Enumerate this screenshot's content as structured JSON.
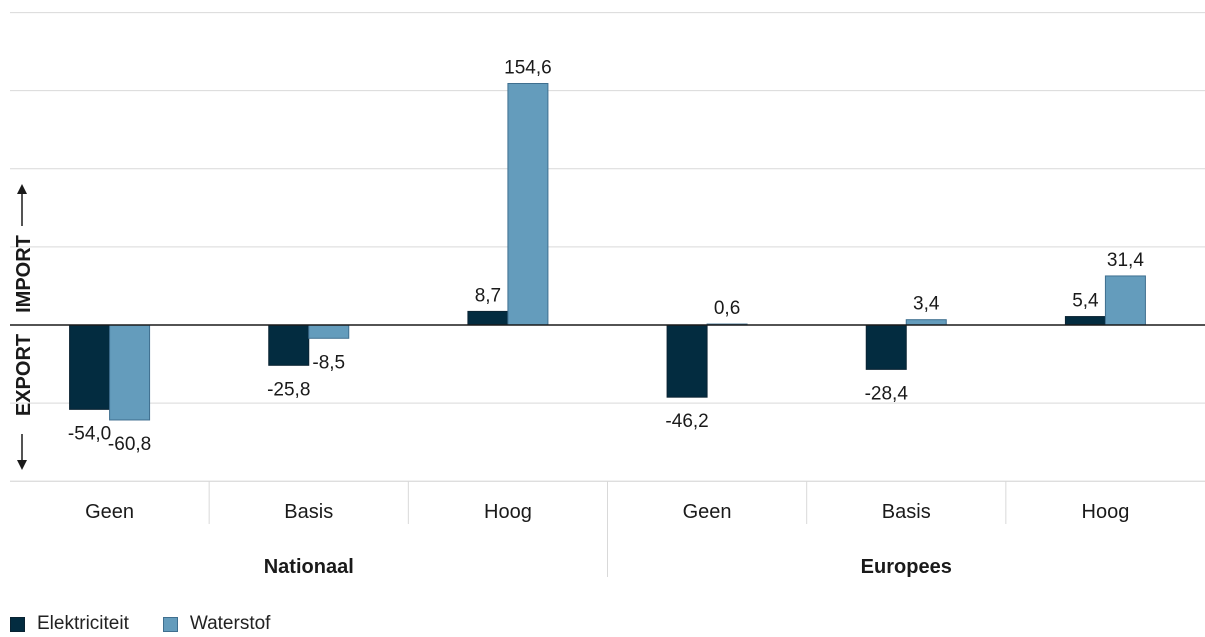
{
  "chart_data": {
    "type": "bar",
    "y_axis_label_positive": "IMPORT",
    "y_axis_label_negative": "EXPORT",
    "ylim": [
      -100,
      200
    ],
    "grid": true,
    "groups": [
      {
        "label": "Nationaal",
        "categories": [
          "Geen",
          "Basis",
          "Hoog"
        ]
      },
      {
        "label": "Europees",
        "categories": [
          "Geen",
          "Basis",
          "Hoog"
        ]
      }
    ],
    "series": [
      {
        "name": "Elektriciteit",
        "color": "#032c40",
        "values": [
          -54.0,
          -25.8,
          8.7,
          -46.2,
          -28.4,
          5.4
        ],
        "labels": [
          "-54,0",
          "-25,8",
          "8,7",
          "-46,2",
          "-28,4",
          "5,4"
        ]
      },
      {
        "name": "Waterstof",
        "color": "#649cbc",
        "values": [
          -60.8,
          -8.5,
          154.6,
          0.6,
          3.4,
          31.4
        ],
        "labels": [
          "-60,8",
          "-8,5",
          "154,6",
          "0,6",
          "3,4",
          "31,4"
        ]
      }
    ],
    "legend_position": "bottom-left"
  }
}
